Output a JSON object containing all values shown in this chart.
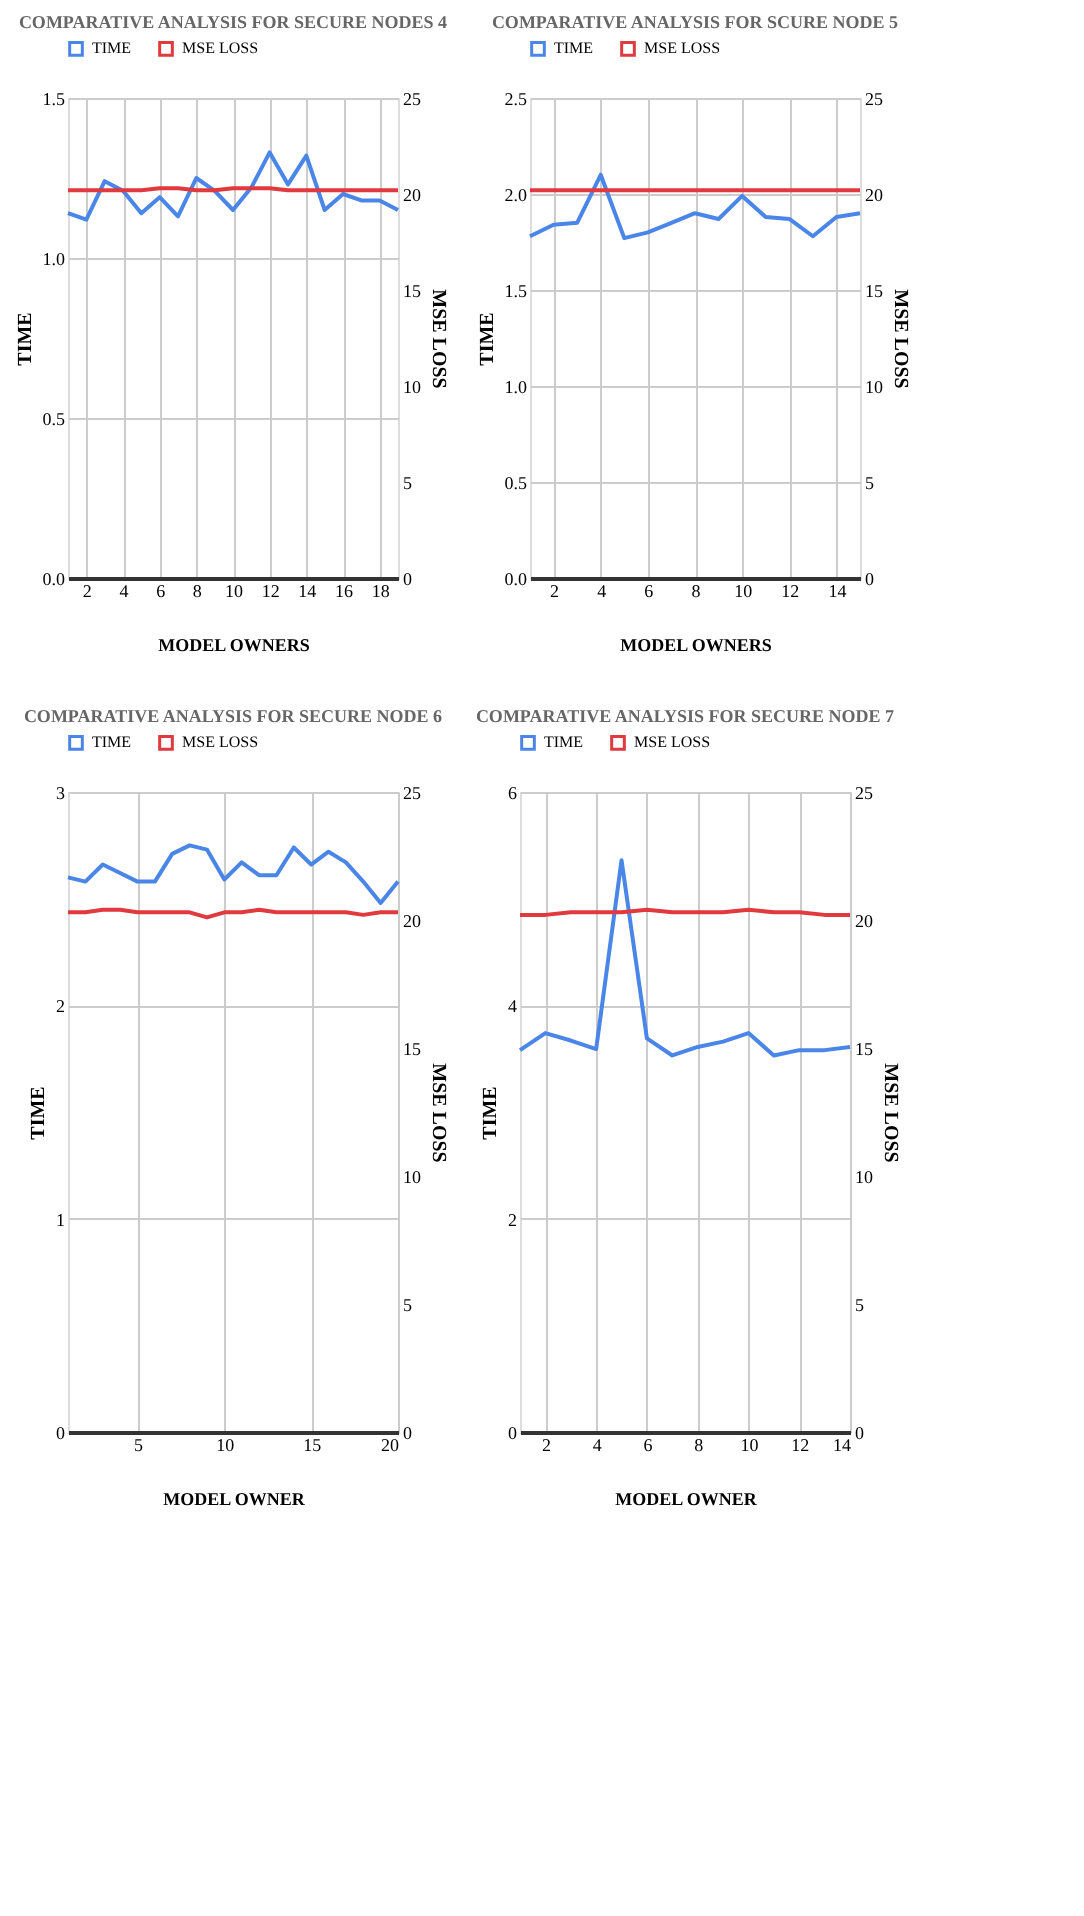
{
  "chart_data": [
    {
      "type": "line",
      "title": "COMPARATIVE ANALYSIS FOR SECURE NODES 4",
      "xlabel": "MODEL OWNERS",
      "ylabel": "TIME",
      "y2label": "MSE LOSS",
      "x": [
        1,
        2,
        3,
        4,
        5,
        6,
        7,
        8,
        9,
        10,
        11,
        12,
        13,
        14,
        15,
        16,
        17,
        18,
        19
      ],
      "series": [
        {
          "name": "TIME",
          "color": "#4a86e8",
          "values": [
            1.14,
            1.12,
            1.24,
            1.21,
            1.14,
            1.19,
            1.13,
            1.25,
            1.21,
            1.15,
            1.22,
            1.33,
            1.23,
            1.32,
            1.15,
            1.2,
            1.18,
            1.18,
            1.15
          ]
        },
        {
          "name": "MSE LOSS",
          "color": "#e0393e",
          "axis": "y2",
          "values": [
            20.2,
            20.2,
            20.2,
            20.2,
            20.2,
            20.3,
            20.3,
            20.2,
            20.2,
            20.3,
            20.3,
            20.3,
            20.2,
            20.2,
            20.2,
            20.2,
            20.2,
            20.2,
            20.2
          ]
        }
      ],
      "xlim": [
        1,
        19
      ],
      "xticks": [
        2,
        4,
        6,
        8,
        10,
        12,
        14,
        16,
        18
      ],
      "ylim": [
        0,
        1.5
      ],
      "yticks": [
        {
          "value": 0,
          "label": "0.0"
        },
        {
          "value": 0.5,
          "label": "0.5"
        },
        {
          "value": 1,
          "label": "1.0"
        },
        1.5
      ],
      "y2lim": [
        0,
        25
      ],
      "y2ticks": [
        0,
        5,
        10,
        15,
        20,
        25
      ],
      "grid": true,
      "legend": "top"
    },
    {
      "type": "line",
      "title": "COMPARATIVE ANALYSIS FOR SCURE NODE 5",
      "xlabel": "MODEL OWNERS",
      "ylabel": "TIME",
      "y2label": "MSE LOSS",
      "x": [
        1,
        2,
        3,
        4,
        5,
        6,
        7,
        8,
        9,
        10,
        11,
        12,
        13,
        14,
        15
      ],
      "series": [
        {
          "name": "TIME",
          "color": "#4a86e8",
          "values": [
            1.78,
            1.84,
            1.85,
            2.1,
            1.77,
            1.8,
            1.85,
            1.9,
            1.87,
            1.99,
            1.88,
            1.87,
            1.78,
            1.88,
            1.9
          ]
        },
        {
          "name": "MSE LOSS",
          "color": "#e0393e",
          "axis": "y2",
          "values": [
            20.2,
            20.2,
            20.2,
            20.2,
            20.2,
            20.2,
            20.2,
            20.2,
            20.2,
            20.2,
            20.2,
            20.2,
            20.2,
            20.2,
            20.2
          ]
        }
      ],
      "xlim": [
        1,
        15
      ],
      "xticks": [
        2,
        4,
        6,
        8,
        10,
        12,
        14
      ],
      "ylim": [
        0,
        2.5
      ],
      "yticks": [
        {
          "value": 0,
          "label": "0.0"
        },
        0.5,
        {
          "value": 1,
          "label": "1.0"
        },
        1.5,
        {
          "value": 2,
          "label": "2.0"
        },
        2.5
      ],
      "y2lim": [
        0,
        25
      ],
      "y2ticks": [
        0,
        5,
        10,
        15,
        20,
        25
      ],
      "grid": true,
      "legend": "top"
    },
    {
      "type": "line",
      "title": "COMPARATIVE ANALYSIS FOR SECURE NODE 6",
      "xlabel": "MODEL OWNER",
      "ylabel": "TIME",
      "y2label": "MSE LOSS",
      "x": [
        1,
        2,
        3,
        4,
        5,
        6,
        7,
        8,
        9,
        10,
        11,
        12,
        13,
        14,
        15,
        16,
        17,
        18,
        19,
        20
      ],
      "series": [
        {
          "name": "TIME",
          "color": "#4a86e8",
          "values": [
            2.6,
            2.58,
            2.66,
            2.62,
            2.58,
            2.58,
            2.71,
            2.75,
            2.73,
            2.59,
            2.67,
            2.61,
            2.61,
            2.74,
            2.66,
            2.72,
            2.67,
            2.58,
            2.48,
            2.58
          ]
        },
        {
          "name": "MSE LOSS",
          "color": "#e0393e",
          "axis": "y2",
          "values": [
            20.3,
            20.3,
            20.4,
            20.4,
            20.3,
            20.3,
            20.3,
            20.3,
            20.1,
            20.3,
            20.3,
            20.4,
            20.3,
            20.3,
            20.3,
            20.3,
            20.3,
            20.2,
            20.3,
            20.3
          ]
        }
      ],
      "xlim": [
        1,
        20
      ],
      "xticks": [
        5,
        10,
        15,
        20
      ],
      "ylim": [
        0,
        3
      ],
      "yticks": [
        0,
        1,
        2,
        3
      ],
      "y2lim": [
        0,
        25
      ],
      "y2ticks": [
        0,
        5,
        10,
        15,
        20,
        25
      ],
      "grid": true,
      "legend": "top"
    },
    {
      "type": "line",
      "title": "COMPARATIVE ANALYSIS FOR SECURE NODE 7",
      "xlabel": "MODEL OWNER",
      "ylabel": "TIME",
      "y2label": "MSE LOSS",
      "x": [
        1,
        2,
        3,
        4,
        5,
        6,
        7,
        8,
        9,
        10,
        11,
        12,
        13,
        14
      ],
      "series": [
        {
          "name": "TIME",
          "color": "#4a86e8",
          "values": [
            3.58,
            3.74,
            3.67,
            3.59,
            5.36,
            3.69,
            3.53,
            3.61,
            3.66,
            3.74,
            3.53,
            3.58,
            3.58,
            3.61
          ]
        },
        {
          "name": "MSE LOSS",
          "color": "#e0393e",
          "axis": "y2",
          "values": [
            20.2,
            20.2,
            20.3,
            20.3,
            20.3,
            20.4,
            20.3,
            20.3,
            20.3,
            20.4,
            20.3,
            20.3,
            20.2,
            20.2
          ]
        }
      ],
      "xlim": [
        1,
        14
      ],
      "xticks": [
        2,
        4,
        6,
        8,
        10,
        12,
        14
      ],
      "ylim": [
        0,
        6
      ],
      "yticks": [
        0,
        2,
        4,
        6
      ],
      "y2lim": [
        0,
        25
      ],
      "y2ticks": [
        0,
        5,
        10,
        15,
        20,
        25
      ],
      "grid": true,
      "legend": "top"
    }
  ]
}
